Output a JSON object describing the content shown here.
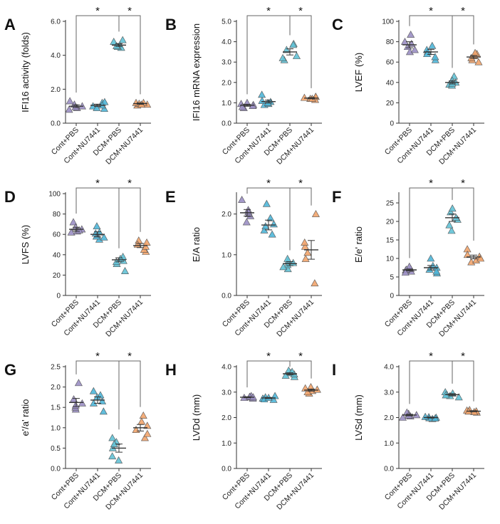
{
  "figure": {
    "categories": [
      "Cont+PBS",
      "Cont+NU7441",
      "DCM+PBS",
      "DCM+NU7441"
    ],
    "group_colors": [
      "#9b8fc4",
      "#4fb6d8",
      "#62c2d6",
      "#f2a46b"
    ],
    "mean_line_color": "#333333",
    "significance_symbol": "*"
  },
  "chart_data": [
    {
      "type": "scatter",
      "letter": "A",
      "ylabel": "IFI16 activity (folds)",
      "ylim": [
        0,
        6.0
      ],
      "yticks": [
        0.0,
        2.0,
        4.0,
        6.0
      ],
      "tick_decimals": 1,
      "points": [
        [
          0.8,
          1.0,
          1.3,
          0.9,
          1.1,
          0.95
        ],
        [
          0.85,
          1.2,
          1.0,
          1.25,
          1.05,
          0.9
        ],
        [
          4.9,
          4.6,
          4.45,
          4.5,
          4.8,
          4.55
        ],
        [
          1.1,
          1.2,
          1.05,
          1.15,
          1.2,
          1.1
        ]
      ],
      "means": [
        1.0,
        1.05,
        4.6,
        1.15
      ],
      "sem": [
        0.08,
        0.07,
        0.08,
        0.04
      ],
      "significance": [
        {
          "from": 0,
          "to": 2,
          "label": "*"
        },
        {
          "from": 2,
          "to": 3,
          "label": "*"
        }
      ]
    },
    {
      "type": "scatter",
      "letter": "B",
      "ylabel": "IFI16 mRNA expression",
      "ylim": [
        0,
        5.0
      ],
      "yticks": [
        0.0,
        1.0,
        2.0,
        3.0,
        4.0,
        5.0
      ],
      "tick_decimals": 1,
      "points": [
        [
          0.75,
          0.9,
          0.95,
          0.8,
          1.0,
          0.85
        ],
        [
          0.9,
          1.05,
          1.1,
          1.4,
          0.95,
          1.0
        ],
        [
          3.6,
          3.9,
          3.3,
          3.1,
          3.2,
          3.85
        ],
        [
          1.2,
          1.3,
          1.15,
          1.25,
          1.2,
          1.3
        ]
      ],
      "means": [
        0.88,
        1.06,
        3.5,
        1.23
      ],
      "sem": [
        0.05,
        0.07,
        0.15,
        0.03
      ],
      "significance": [
        {
          "from": 0,
          "to": 2,
          "label": "*"
        },
        {
          "from": 2,
          "to": 3,
          "label": "*"
        }
      ]
    },
    {
      "type": "scatter",
      "letter": "C",
      "ylabel": "LVEF (%)",
      "ylim": [
        0,
        100
      ],
      "yticks": [
        0,
        20,
        40,
        60,
        80,
        100
      ],
      "tick_decimals": 0,
      "points": [
        [
          87,
          80,
          70,
          75,
          72,
          78
        ],
        [
          70,
          72,
          62,
          65,
          76,
          68
        ],
        [
          46,
          42,
          38,
          40,
          37,
          39
        ],
        [
          60,
          66,
          68,
          62,
          64,
          69
        ]
      ],
      "means": [
        77,
        70,
        40,
        65
      ],
      "sem": [
        3,
        2.5,
        1.5,
        1.5
      ],
      "significance": [
        {
          "from": 0,
          "to": 2,
          "label": "*"
        },
        {
          "from": 2,
          "to": 3,
          "label": "*"
        }
      ]
    },
    {
      "type": "scatter",
      "letter": "D",
      "ylabel": "LVFS (%)",
      "ylim": [
        0,
        100
      ],
      "yticks": [
        0,
        20,
        40,
        60,
        80,
        100
      ],
      "tick_decimals": 0,
      "points": [
        [
          62,
          72,
          65,
          67,
          63,
          64
        ],
        [
          68,
          55,
          58,
          61,
          62,
          57
        ],
        [
          34,
          24,
          38,
          31,
          36,
          33
        ],
        [
          43,
          54,
          45,
          48,
          50,
          52
        ]
      ],
      "means": [
        65,
        60,
        35,
        49
      ],
      "sem": [
        2,
        2.5,
        2,
        2
      ],
      "significance": [
        {
          "from": 0,
          "to": 2,
          "label": "*"
        },
        {
          "from": 2,
          "to": 3,
          "label": "*"
        }
      ]
    },
    {
      "type": "scatter",
      "letter": "E",
      "ylabel": "E/A ratio",
      "ylim": [
        0,
        2.5
      ],
      "yticks": [
        0.0,
        1.0,
        2.0
      ],
      "tick_decimals": 1,
      "points": [
        [
          2.35,
          1.95,
          2.1,
          2.0,
          1.8,
          2.05
        ],
        [
          2.25,
          1.6,
          1.5,
          1.75,
          1.7,
          1.9
        ],
        [
          0.65,
          0.85,
          0.75,
          0.8,
          0.7,
          0.9
        ],
        [
          2.0,
          1.2,
          0.9,
          1.05,
          0.3,
          1.3
        ]
      ],
      "means": [
        2.03,
        1.73,
        0.78,
        1.12
      ],
      "sem": [
        0.08,
        0.12,
        0.05,
        0.23
      ],
      "significance": [
        {
          "from": 0,
          "to": 2,
          "label": "*"
        },
        {
          "from": 2,
          "to": 3,
          "label": "*"
        }
      ]
    },
    {
      "type": "scatter",
      "letter": "F",
      "ylabel": "E/e' ratio",
      "ylim": [
        0,
        27.5
      ],
      "yticks": [
        0,
        5,
        10,
        15,
        20,
        25
      ],
      "tick_decimals": 0,
      "points": [
        [
          6.5,
          7.2,
          7.8,
          6.8,
          7.0,
          6.2
        ],
        [
          6.0,
          8.0,
          10.0,
          7.5,
          6.5,
          7.0
        ],
        [
          17.5,
          20.5,
          22.5,
          23.5,
          21.0,
          19.0
        ],
        [
          9.0,
          10.5,
          12.5,
          11.0,
          9.5,
          10.0
        ]
      ],
      "means": [
        6.9,
        7.5,
        21.0,
        10.4
      ],
      "sem": [
        0.25,
        0.6,
        1.0,
        0.5
      ],
      "significance": [
        {
          "from": 0,
          "to": 2,
          "label": "*"
        },
        {
          "from": 2,
          "to": 3,
          "label": "*"
        }
      ]
    },
    {
      "type": "scatter",
      "letter": "G",
      "ylabel": "e'/a' ratio",
      "ylim": [
        0,
        2.5
      ],
      "yticks": [
        0.0,
        0.5,
        1.0,
        1.5,
        2.0,
        2.5
      ],
      "tick_decimals": 1,
      "points": [
        [
          2.1,
          1.45,
          1.5,
          1.6,
          1.7,
          1.55
        ],
        [
          1.9,
          1.4,
          1.65,
          1.8,
          1.6,
          1.75
        ],
        [
          0.75,
          0.3,
          0.2,
          0.5,
          0.65,
          0.6
        ],
        [
          1.3,
          0.75,
          0.85,
          1.05,
          1.15,
          0.95
        ]
      ],
      "means": [
        1.62,
        1.68,
        0.5,
        1.0
      ],
      "sem": [
        0.1,
        0.08,
        0.1,
        0.08
      ],
      "significance": [
        {
          "from": 0,
          "to": 2,
          "label": "*"
        },
        {
          "from": 2,
          "to": 3,
          "label": "*"
        }
      ]
    },
    {
      "type": "scatter",
      "letter": "H",
      "ylabel": "LVDd (mm)",
      "ylim": [
        0,
        4.0
      ],
      "yticks": [
        0.0,
        1.0,
        2.0,
        3.0,
        4.0
      ],
      "tick_decimals": 1,
      "points": [
        [
          2.75,
          2.8,
          2.85,
          2.78,
          2.82,
          2.8
        ],
        [
          2.7,
          2.75,
          2.8,
          2.85,
          2.72,
          2.78
        ],
        [
          3.6,
          3.75,
          3.85,
          3.7,
          3.65,
          3.8
        ],
        [
          2.95,
          3.05,
          3.2,
          3.0,
          3.1,
          3.15
        ]
      ],
      "means": [
        2.8,
        2.77,
        3.72,
        3.08
      ],
      "sem": [
        0.02,
        0.02,
        0.04,
        0.04
      ],
      "significance": [
        {
          "from": 0,
          "to": 2,
          "label": "*"
        },
        {
          "from": 2,
          "to": 3,
          "label": "*"
        }
      ]
    },
    {
      "type": "scatter",
      "letter": "I",
      "ylabel": "LVSd (mm)",
      "ylim": [
        0,
        4.0
      ],
      "yticks": [
        0.0,
        1.0,
        2.0,
        3.0,
        4.0
      ],
      "tick_decimals": 1,
      "points": [
        [
          2.0,
          2.15,
          2.1,
          2.05,
          2.2,
          2.08
        ],
        [
          1.95,
          2.0,
          2.02,
          1.98,
          2.03,
          1.97
        ],
        [
          2.8,
          2.9,
          3.0,
          2.85,
          2.95,
          2.88
        ],
        [
          2.2,
          2.25,
          2.3,
          2.22,
          2.28,
          2.24
        ]
      ],
      "means": [
        2.1,
        2.0,
        2.9,
        2.25
      ],
      "sem": [
        0.03,
        0.02,
        0.04,
        0.02
      ],
      "significance": [
        {
          "from": 0,
          "to": 2,
          "label": "*"
        },
        {
          "from": 2,
          "to": 3,
          "label": "*"
        }
      ]
    }
  ]
}
